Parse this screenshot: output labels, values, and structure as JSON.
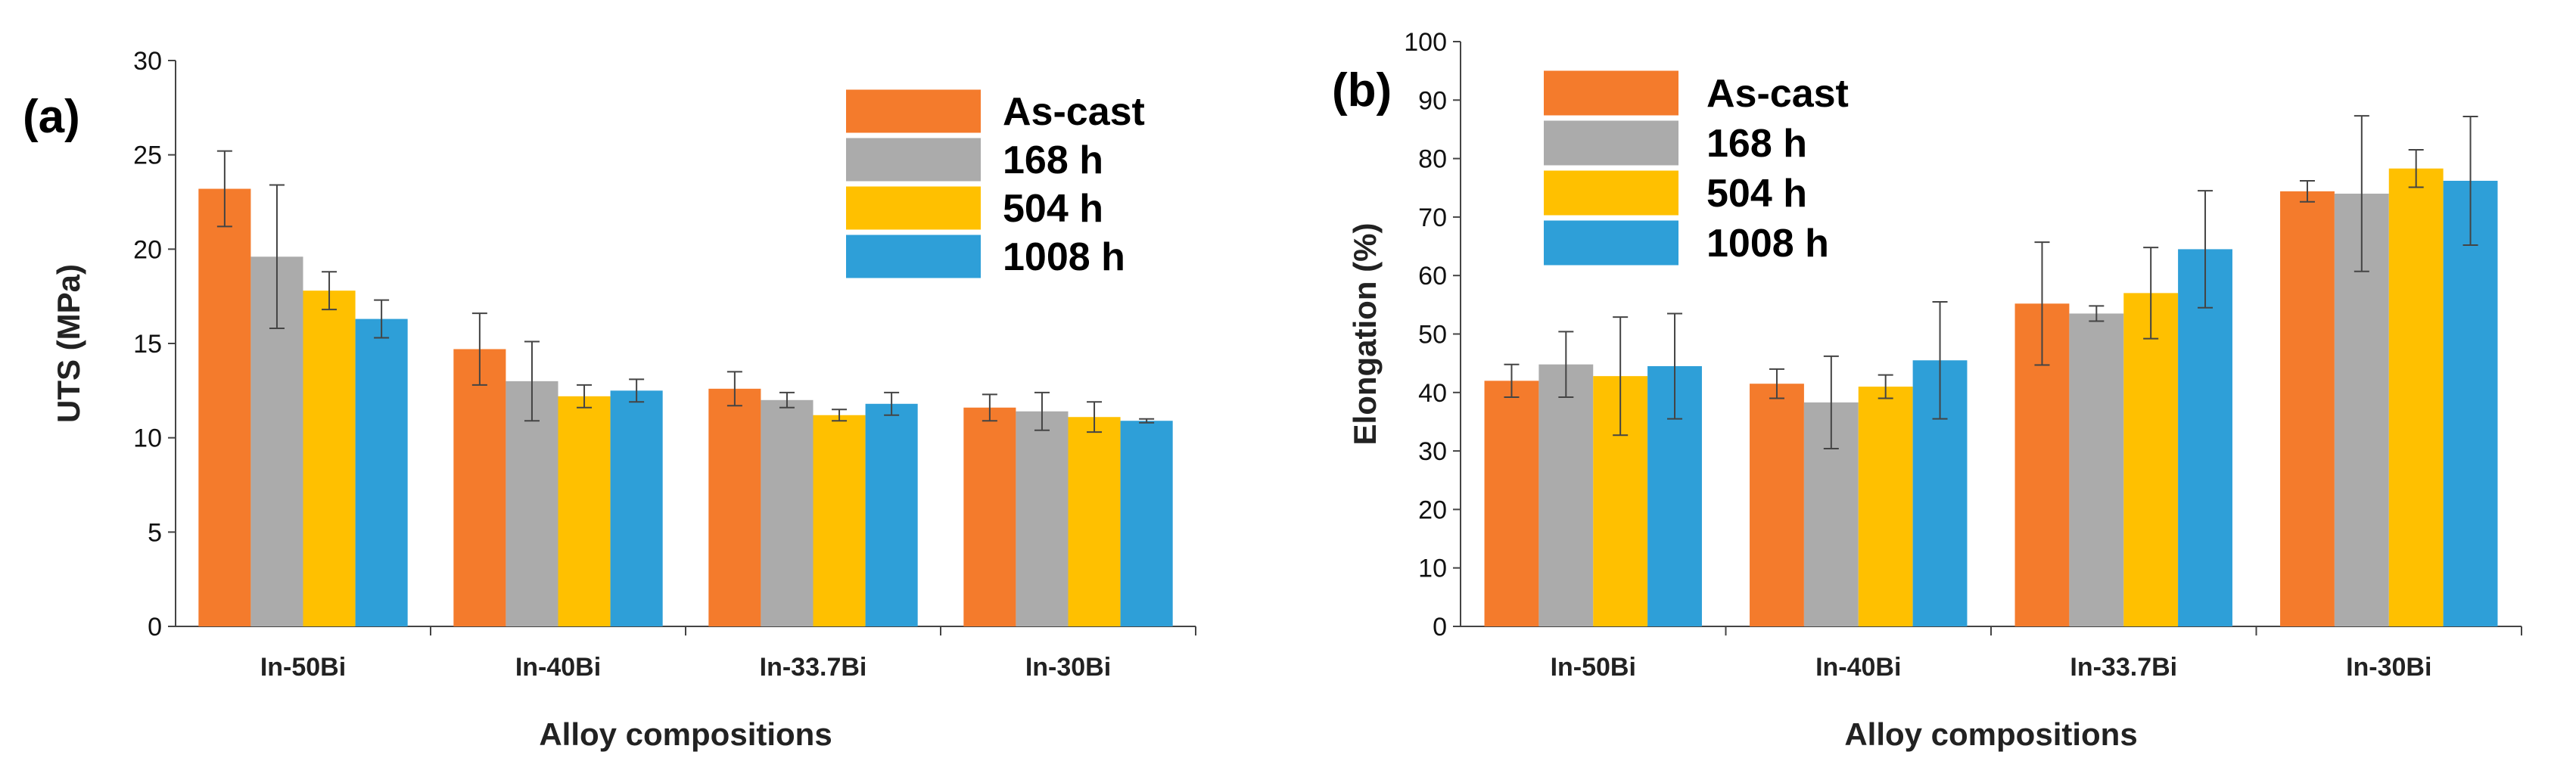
{
  "chart_data": [
    {
      "type": "bar",
      "panel_label": "(a)",
      "categories": [
        "In-50Bi",
        "In-40Bi",
        "In-33.7Bi",
        "In-30Bi"
      ],
      "series": [
        {
          "name": "As-cast",
          "color": "#F47B2C",
          "values": [
            23.2,
            14.7,
            12.6,
            11.6
          ],
          "errors": [
            2.0,
            1.9,
            0.9,
            0.7
          ]
        },
        {
          "name": "168 h",
          "color": "#ABABAB",
          "values": [
            19.6,
            13.0,
            12.0,
            11.4
          ],
          "errors": [
            3.8,
            2.1,
            0.4,
            1.0
          ]
        },
        {
          "name": "504 h",
          "color": "#FFC000",
          "values": [
            17.8,
            12.2,
            11.2,
            11.1
          ],
          "errors": [
            1.0,
            0.6,
            0.3,
            0.8
          ]
        },
        {
          "name": "1008 h",
          "color": "#2E9FD8",
          "values": [
            16.3,
            12.5,
            11.8,
            10.9
          ],
          "errors": [
            1.0,
            0.6,
            0.6,
            0.1
          ]
        }
      ],
      "xlabel": "Alloy compositions",
      "ylabel": "UTS (MPa)",
      "ylim": [
        0,
        30
      ],
      "yticks": [
        0,
        5,
        10,
        15,
        20,
        25,
        30
      ],
      "grid": false,
      "legend_position": "top-right"
    },
    {
      "type": "bar",
      "panel_label": "(b)",
      "categories": [
        "In-50Bi",
        "In-40Bi",
        "In-33.7Bi",
        "In-30Bi"
      ],
      "series": [
        {
          "name": "As-cast",
          "color": "#F47B2C",
          "values": [
            42.0,
            41.5,
            55.2,
            74.4
          ],
          "errors": [
            2.8,
            2.5,
            10.5,
            1.8
          ]
        },
        {
          "name": "168 h",
          "color": "#ABABAB",
          "values": [
            44.8,
            38.3,
            53.5,
            74.0
          ],
          "errors": [
            5.6,
            7.9,
            1.3,
            13.3
          ]
        },
        {
          "name": "504 h",
          "color": "#FFC000",
          "values": [
            42.8,
            41.0,
            57.0,
            78.3
          ],
          "errors": [
            10.1,
            2.0,
            7.8,
            3.2
          ]
        },
        {
          "name": "1008 h",
          "color": "#2E9FD8",
          "values": [
            44.5,
            45.5,
            64.5,
            76.2
          ],
          "errors": [
            9.0,
            10.0,
            10.0,
            11.0
          ]
        }
      ],
      "xlabel": "Alloy compositions",
      "ylabel": "Elongation (%)",
      "ylim": [
        0,
        100
      ],
      "yticks": [
        0,
        10,
        20,
        30,
        40,
        50,
        60,
        70,
        80,
        90,
        100
      ],
      "grid": false,
      "legend_position": "top-left"
    }
  ]
}
